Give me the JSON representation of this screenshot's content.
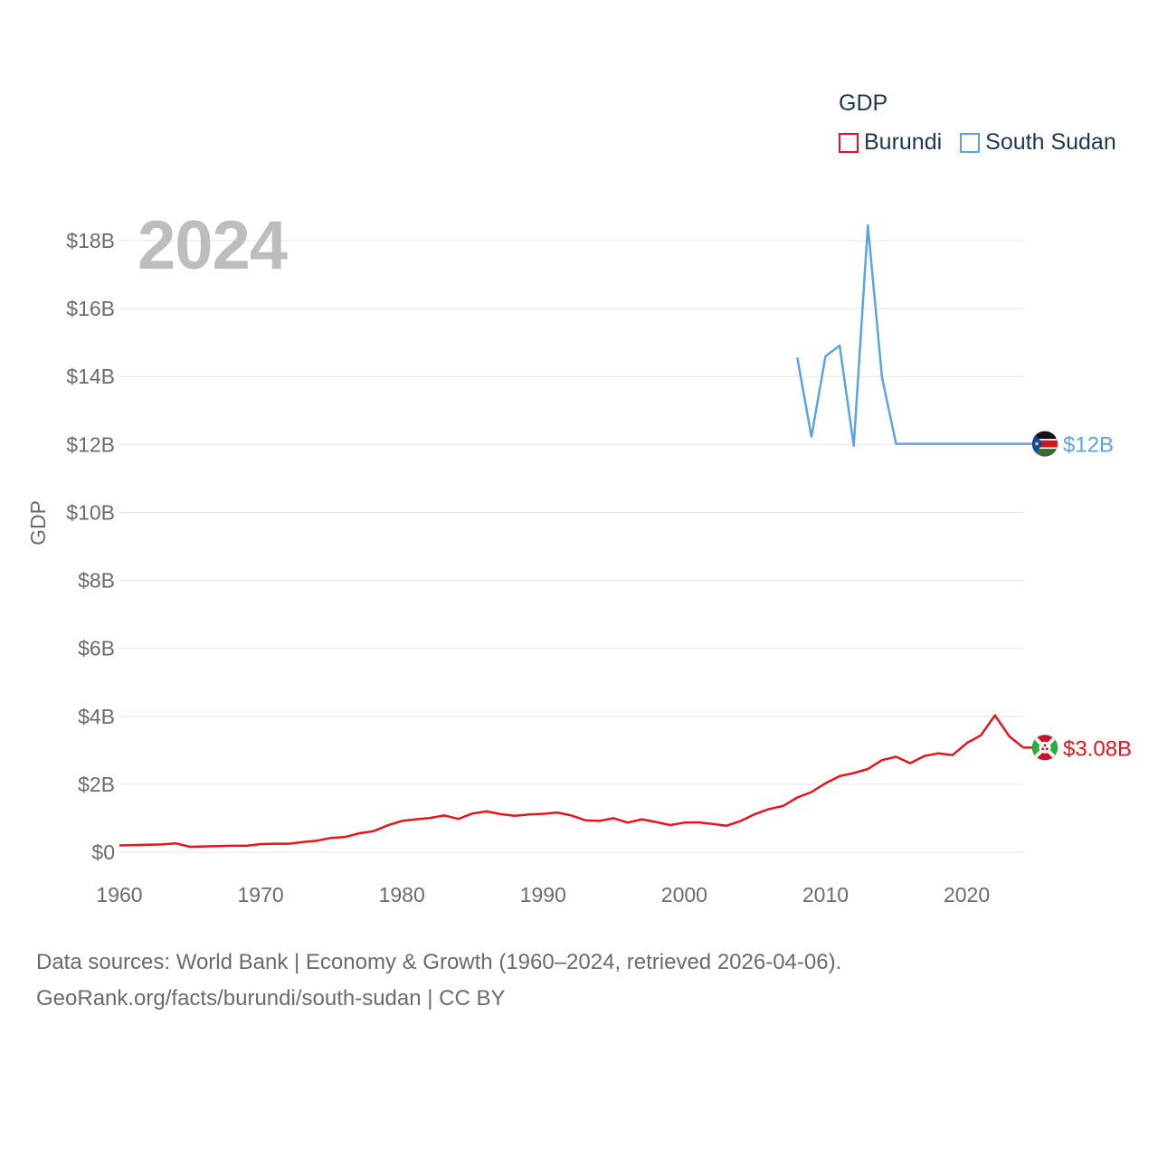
{
  "legend": {
    "title": "GDP"
  },
  "year_label": "2024",
  "source": {
    "line1": "Data sources: World Bank | Economy & Growth (1960–2024, retrieved 2026-04-06).",
    "line2": "GeoRank.org/facts/burundi/south-sudan | CC BY"
  },
  "chart_data": {
    "type": "line",
    "title": "GDP",
    "xlabel": "",
    "ylabel": "GDP",
    "xlim": [
      1960,
      2024
    ],
    "ylim": [
      0,
      18
    ],
    "y_unit": "billion USD",
    "x_ticks": [
      1960,
      1970,
      1980,
      1990,
      2000,
      2010,
      2020
    ],
    "y_ticks": [
      0,
      2,
      4,
      6,
      8,
      10,
      12,
      14,
      16,
      18
    ],
    "y_tick_labels": [
      "$0",
      "$2B",
      "$4B",
      "$6B",
      "$8B",
      "$10B",
      "$12B",
      "$14B",
      "$16B",
      "$18B"
    ],
    "grid": true,
    "legend_position": "top-right",
    "series": [
      {
        "name": "Burundi",
        "color": "#e8141b",
        "end_label": "$3.08B",
        "flag": "burundi-flag",
        "x": [
          1960,
          1961,
          1962,
          1963,
          1964,
          1965,
          1966,
          1967,
          1968,
          1969,
          1970,
          1971,
          1972,
          1973,
          1974,
          1975,
          1976,
          1977,
          1978,
          1979,
          1980,
          1981,
          1982,
          1983,
          1984,
          1985,
          1986,
          1987,
          1988,
          1989,
          1990,
          1991,
          1992,
          1993,
          1994,
          1995,
          1996,
          1997,
          1998,
          1999,
          2000,
          2001,
          2002,
          2003,
          2004,
          2005,
          2006,
          2007,
          2008,
          2009,
          2010,
          2011,
          2012,
          2013,
          2014,
          2015,
          2016,
          2017,
          2018,
          2019,
          2020,
          2021,
          2022,
          2023,
          2024
        ],
        "values": [
          0.2,
          0.21,
          0.22,
          0.23,
          0.26,
          0.16,
          0.17,
          0.18,
          0.19,
          0.19,
          0.24,
          0.25,
          0.25,
          0.3,
          0.34,
          0.42,
          0.45,
          0.56,
          0.62,
          0.79,
          0.92,
          0.97,
          1.01,
          1.08,
          0.98,
          1.14,
          1.2,
          1.12,
          1.07,
          1.11,
          1.13,
          1.17,
          1.08,
          0.94,
          0.92,
          1.0,
          0.87,
          0.97,
          0.89,
          0.8,
          0.87,
          0.88,
          0.83,
          0.78,
          0.92,
          1.12,
          1.27,
          1.36,
          1.61,
          1.77,
          2.03,
          2.24,
          2.33,
          2.45,
          2.71,
          2.81,
          2.62,
          2.83,
          2.91,
          2.86,
          3.21,
          3.44,
          4.03,
          3.42,
          3.08
        ]
      },
      {
        "name": "South Sudan",
        "color": "#5ba3e6",
        "end_label": "$12B",
        "flag": "south-sudan-flag",
        "x": [
          2008,
          2009,
          2010,
          2011,
          2012,
          2013,
          2014,
          2015,
          2016,
          2017,
          2018,
          2019,
          2020,
          2021,
          2022,
          2023,
          2024
        ],
        "values": [
          14.56,
          12.23,
          14.6,
          14.91,
          11.96,
          18.45,
          13.98,
          12.02,
          12.02,
          12.02,
          12.02,
          12.02,
          12.02,
          12.02,
          12.02,
          12.02,
          12.02
        ]
      }
    ]
  }
}
